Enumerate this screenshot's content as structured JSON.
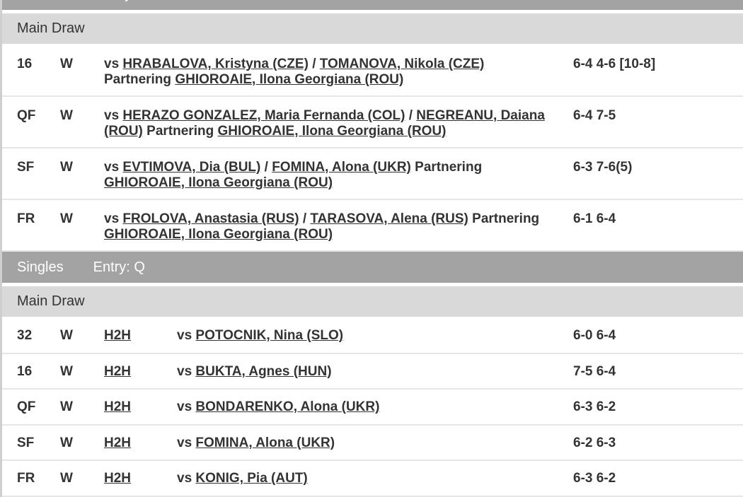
{
  "sections": [
    {
      "event": "Doubles",
      "entry": "Entry: BA",
      "draw": "Main Draw",
      "type": "doubles",
      "rows": [
        {
          "round": "16",
          "result": "W",
          "vs": "vs",
          "opponents": [
            "HRABALOVA, Kristyna (CZE)",
            "TOMANOVA, Nikola (CZE)"
          ],
          "separator": "/",
          "partnering": "Partnering",
          "partner": "GHIOROAIE, Ilona Georgiana (ROU)",
          "score": "6-4 4-6 [10-8]"
        },
        {
          "round": "QF",
          "result": "W",
          "vs": "vs",
          "opponents": [
            "HERAZO GONZALEZ, Maria Fernanda (COL)",
            "NEGREANU, Daiana (ROU)"
          ],
          "separator": "/",
          "partnering": "Partnering",
          "partner": "GHIOROAIE, Ilona Georgiana (ROU)",
          "score": "6-4 7-5"
        },
        {
          "round": "SF",
          "result": "W",
          "vs": "vs",
          "opponents": [
            "EVTIMOVA, Dia (BUL)",
            "FOMINA, Alona (UKR)"
          ],
          "separator": "/",
          "partnering": "Partnering",
          "partner": "GHIOROAIE, Ilona Georgiana (ROU)",
          "score": "6-3 7-6(5)"
        },
        {
          "round": "FR",
          "result": "W",
          "vs": "vs",
          "opponents": [
            "FROLOVA, Anastasia (RUS)",
            "TARASOVA, Alena (RUS)"
          ],
          "separator": "/",
          "partnering": "Partnering",
          "partner": "GHIOROAIE, Ilona Georgiana (ROU)",
          "score": "6-1 6-4"
        }
      ]
    },
    {
      "event": "Singles",
      "entry": "Entry: Q",
      "draw": "Main Draw",
      "type": "singles",
      "rows": [
        {
          "round": "32",
          "result": "W",
          "h2h": "H2H",
          "vs": "vs",
          "opponent": "POTOCNIK, Nina (SLO)",
          "score": "6-0 6-4"
        },
        {
          "round": "16",
          "result": "W",
          "h2h": "H2H",
          "vs": "vs",
          "opponent": "BUKTA, Agnes (HUN)",
          "score": "7-5 6-4"
        },
        {
          "round": "QF",
          "result": "W",
          "h2h": "H2H",
          "vs": "vs",
          "opponent": "BONDARENKO, Alona (UKR)",
          "score": "6-3 6-2"
        },
        {
          "round": "SF",
          "result": "W",
          "h2h": "H2H",
          "vs": "vs",
          "opponent": "FOMINA, Alona (UKR)",
          "score": "6-2 6-3"
        },
        {
          "round": "FR",
          "result": "W",
          "h2h": "H2H",
          "vs": "vs",
          "opponent": "KONIG, Pia (AUT)",
          "score": "6-3 6-2"
        }
      ]
    }
  ]
}
